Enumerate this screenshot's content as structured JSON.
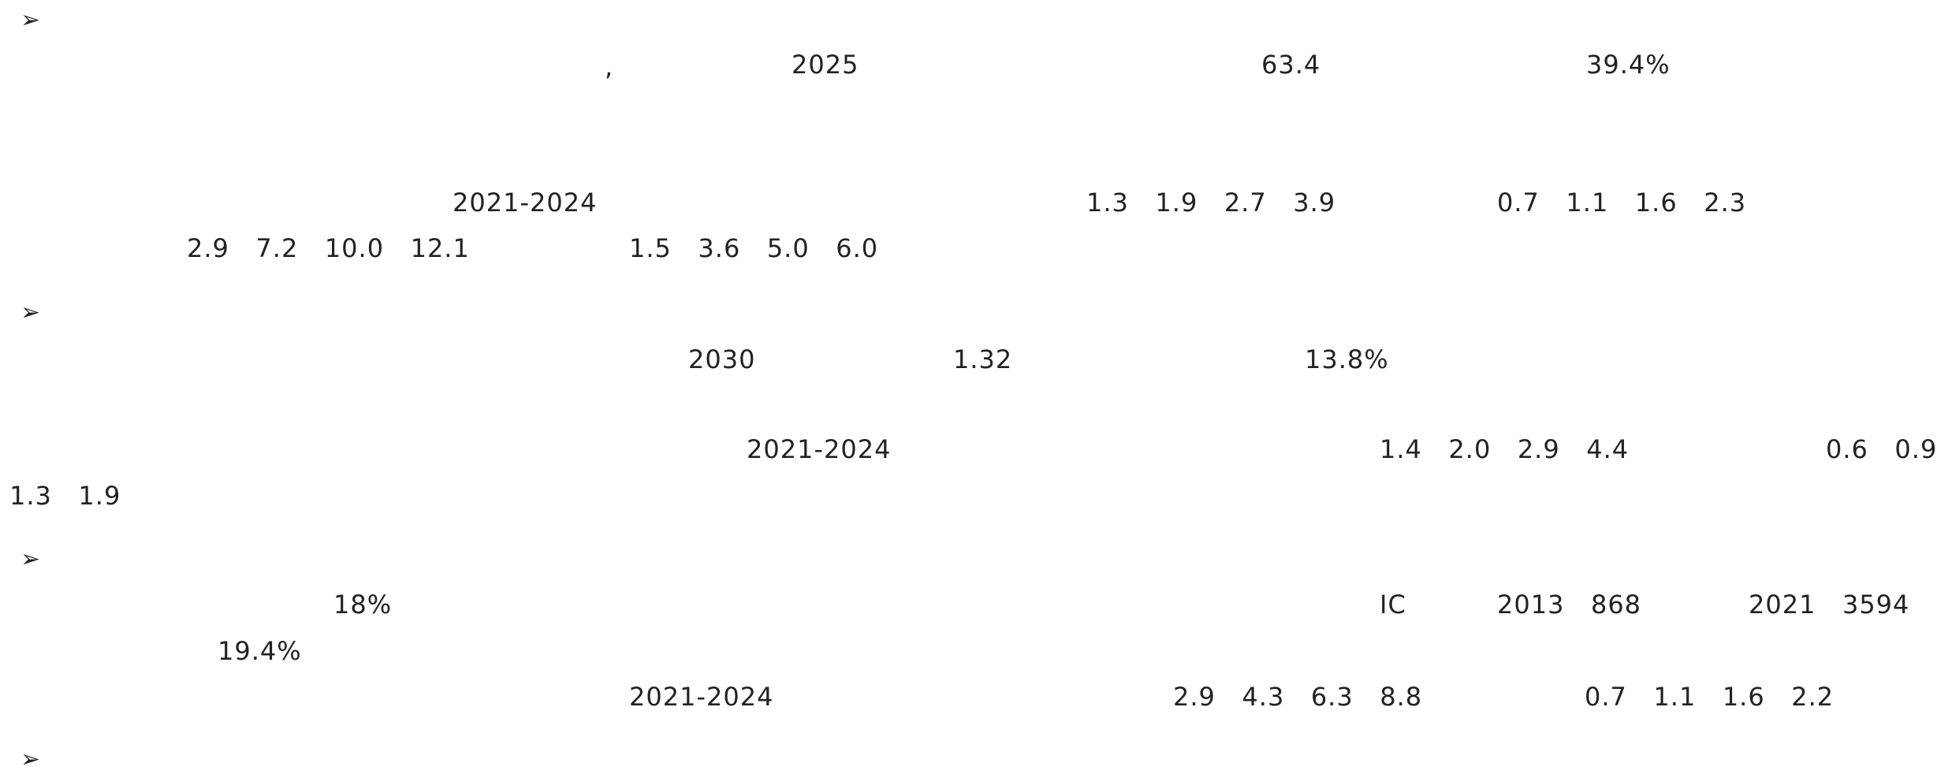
{
  "fragments": [
    "➢",
    ",",
    "2025",
    "63.4",
    "39.4%",
    "2021-2024",
    "1.3   1.9   2.7   3.9",
    "0.7   1.1   1.6   2.3",
    "2.9   7.2   10.0   12.1",
    "1.5   3.6   5.0   6.0",
    "➢",
    "2030",
    "1.32",
    "13.8%",
    "2021-2024",
    "1.4   2.0   2.9   4.4",
    "0.6   0.9",
    "1.3   1.9",
    "➢",
    "18%",
    "IC",
    "2013   868",
    "2021   3594",
    "19.4%",
    "2021-2024",
    "2.9   4.3   6.3   8.8",
    "0.7   1.1   1.6   2.2",
    "➢"
  ]
}
